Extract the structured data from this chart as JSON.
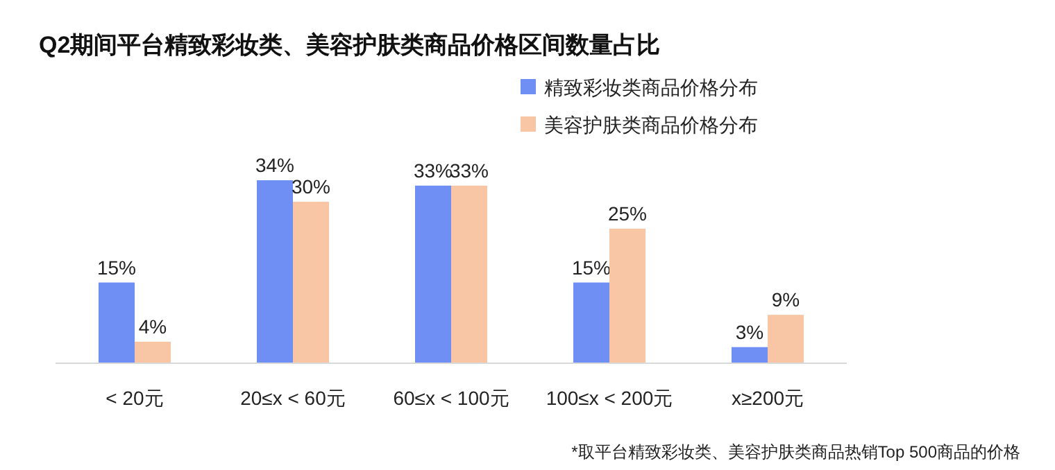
{
  "chart_data": {
    "type": "bar",
    "title": "Q2期间平台精致彩妆类、美容护肤类商品价格区间数量占比",
    "categories": [
      "< 20元",
      "20≤x < 60元",
      "60≤x < 100元",
      "100≤x < 200元",
      "x≥200元"
    ],
    "series": [
      {
        "name": "精致彩妆类商品价格分布",
        "color": "#6f8ff5",
        "values": [
          15,
          34,
          33,
          15,
          3
        ],
        "value_labels": [
          "15%",
          "34%",
          "33%",
          "15%",
          "3%"
        ]
      },
      {
        "name": "美容护肤类商品价格分布",
        "color": "#f8c6a5",
        "values": [
          4,
          30,
          33,
          25,
          9
        ],
        "value_labels": [
          "4%",
          "30%",
          "33%",
          "25%",
          "9%"
        ]
      }
    ],
    "legend": "top right",
    "annotations": [
      "*取平台精致彩妆类、美容护肤类商品热销Top 500商品的价格"
    ]
  }
}
